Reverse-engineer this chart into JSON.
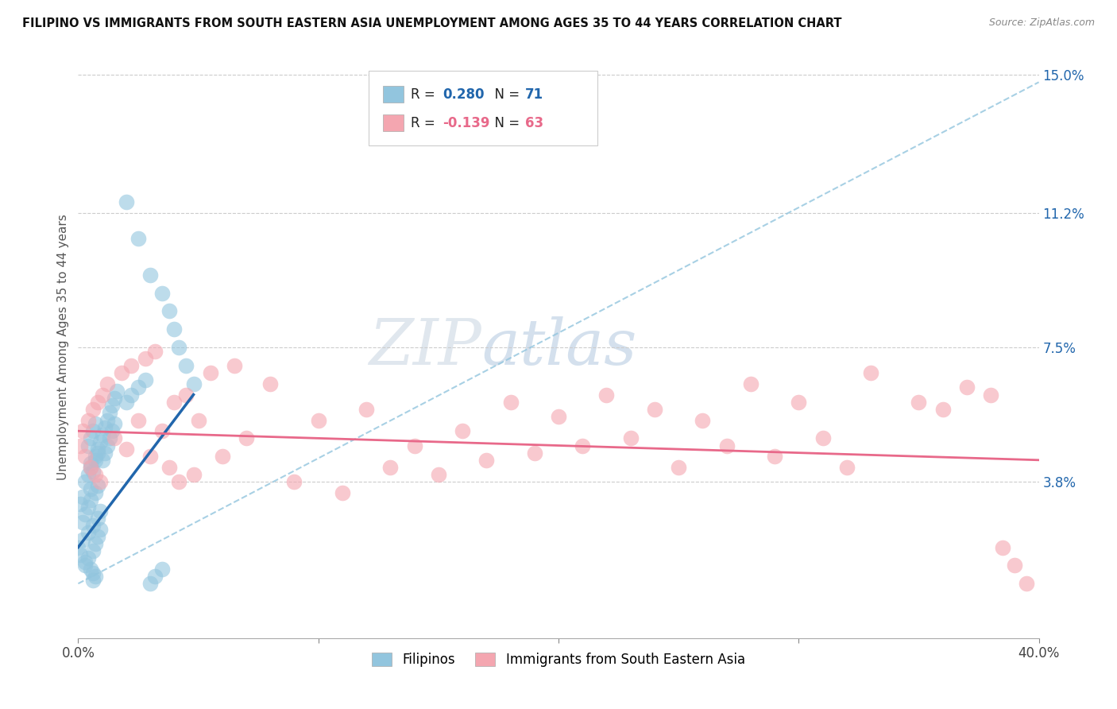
{
  "title": "FILIPINO VS IMMIGRANTS FROM SOUTH EASTERN ASIA UNEMPLOYMENT AMONG AGES 35 TO 44 YEARS CORRELATION CHART",
  "source": "Source: ZipAtlas.com",
  "ylabel": "Unemployment Among Ages 35 to 44 years",
  "xlim": [
    0.0,
    0.4
  ],
  "ylim": [
    -0.005,
    0.155
  ],
  "right_yticks": [
    0.038,
    0.075,
    0.112,
    0.15
  ],
  "right_yticklabels": [
    "3.8%",
    "7.5%",
    "11.2%",
    "15.0%"
  ],
  "blue_color": "#92c5de",
  "pink_color": "#f4a6b0",
  "blue_line_color": "#2166ac",
  "pink_line_color": "#e8698a",
  "dashed_line_color": "#92c5de",
  "watermark_zip": "ZIP",
  "watermark_atlas": "atlas",
  "blue_scatter_x": [
    0.0,
    0.001,
    0.002,
    0.003,
    0.004,
    0.005,
    0.006,
    0.007,
    0.008,
    0.009,
    0.001,
    0.002,
    0.003,
    0.004,
    0.005,
    0.006,
    0.007,
    0.008,
    0.009,
    0.002,
    0.003,
    0.004,
    0.005,
    0.006,
    0.007,
    0.008,
    0.003,
    0.004,
    0.005,
    0.006,
    0.007,
    0.008,
    0.004,
    0.005,
    0.006,
    0.007,
    0.005,
    0.006,
    0.007,
    0.008,
    0.009,
    0.01,
    0.011,
    0.012,
    0.013,
    0.014,
    0.015,
    0.016,
    0.01,
    0.011,
    0.012,
    0.013,
    0.014,
    0.015,
    0.02,
    0.022,
    0.025,
    0.028,
    0.03,
    0.032,
    0.035,
    0.02,
    0.025,
    0.03,
    0.035,
    0.038,
    0.04,
    0.042,
    0.045,
    0.048
  ],
  "blue_scatter_y": [
    0.02,
    0.018,
    0.022,
    0.016,
    0.024,
    0.014,
    0.026,
    0.012,
    0.028,
    0.03,
    0.032,
    0.034,
    0.015,
    0.017,
    0.036,
    0.019,
    0.021,
    0.023,
    0.025,
    0.027,
    0.029,
    0.031,
    0.033,
    0.013,
    0.035,
    0.037,
    0.038,
    0.04,
    0.042,
    0.011,
    0.044,
    0.046,
    0.048,
    0.05,
    0.052,
    0.054,
    0.043,
    0.041,
    0.045,
    0.047,
    0.049,
    0.051,
    0.053,
    0.055,
    0.057,
    0.059,
    0.061,
    0.063,
    0.044,
    0.046,
    0.048,
    0.05,
    0.052,
    0.054,
    0.06,
    0.062,
    0.064,
    0.066,
    0.01,
    0.012,
    0.014,
    0.115,
    0.105,
    0.095,
    0.09,
    0.085,
    0.08,
    0.075,
    0.07,
    0.065
  ],
  "pink_scatter_x": [
    0.001,
    0.002,
    0.003,
    0.004,
    0.005,
    0.006,
    0.007,
    0.008,
    0.009,
    0.01,
    0.012,
    0.015,
    0.018,
    0.02,
    0.022,
    0.025,
    0.028,
    0.03,
    0.032,
    0.035,
    0.038,
    0.04,
    0.042,
    0.045,
    0.048,
    0.05,
    0.055,
    0.06,
    0.065,
    0.07,
    0.08,
    0.09,
    0.1,
    0.11,
    0.12,
    0.13,
    0.14,
    0.15,
    0.16,
    0.17,
    0.18,
    0.19,
    0.2,
    0.21,
    0.22,
    0.23,
    0.24,
    0.25,
    0.26,
    0.27,
    0.28,
    0.29,
    0.3,
    0.31,
    0.32,
    0.33,
    0.35,
    0.36,
    0.37,
    0.38,
    0.385,
    0.39,
    0.395
  ],
  "pink_scatter_y": [
    0.048,
    0.052,
    0.045,
    0.055,
    0.042,
    0.058,
    0.04,
    0.06,
    0.038,
    0.062,
    0.065,
    0.05,
    0.068,
    0.047,
    0.07,
    0.055,
    0.072,
    0.045,
    0.074,
    0.052,
    0.042,
    0.06,
    0.038,
    0.062,
    0.04,
    0.055,
    0.068,
    0.045,
    0.07,
    0.05,
    0.065,
    0.038,
    0.055,
    0.035,
    0.058,
    0.042,
    0.048,
    0.04,
    0.052,
    0.044,
    0.06,
    0.046,
    0.056,
    0.048,
    0.062,
    0.05,
    0.058,
    0.042,
    0.055,
    0.048,
    0.065,
    0.045,
    0.06,
    0.05,
    0.042,
    0.068,
    0.06,
    0.058,
    0.064,
    0.062,
    0.02,
    0.015,
    0.01
  ],
  "blue_trend": [
    0.0,
    0.048,
    0.02,
    0.062
  ],
  "pink_trend": [
    0.0,
    0.4,
    0.052,
    0.044
  ],
  "gray_dashed": [
    0.0,
    0.4,
    0.01,
    0.148
  ]
}
